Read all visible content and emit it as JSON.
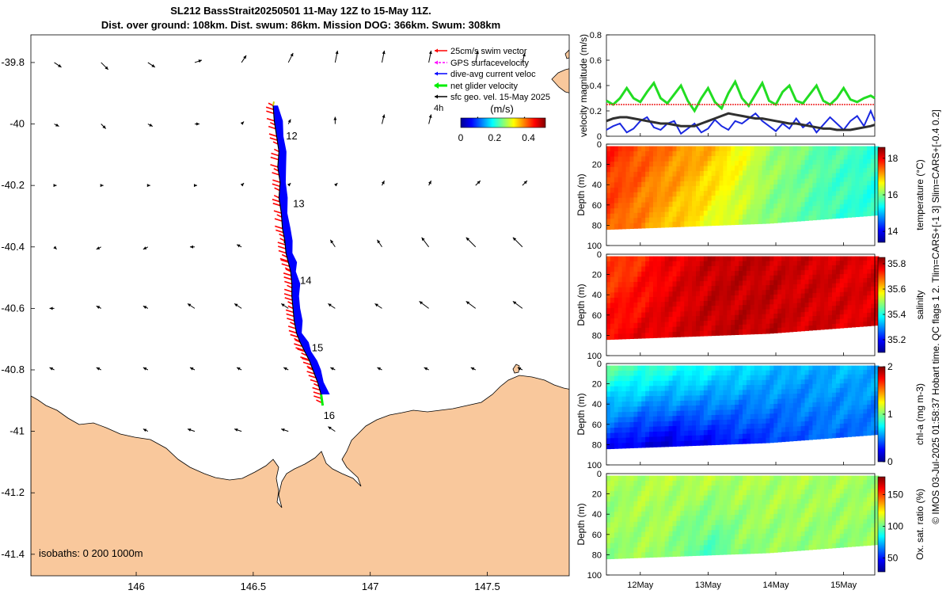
{
  "title": {
    "line1": "SL212 BassStrait20250501 11-May 12Z to 15-May 11Z.",
    "line2": "Dist. over ground: 108km. Dist. swum: 86km. Mission DOG: 366km. Swum: 308km"
  },
  "colors": {
    "land": "#f9c89c",
    "swim": "#ff0000",
    "gps": "#ff00ff",
    "current": "#0000ff",
    "net": "#00ee00",
    "geo": "#000000",
    "velocity_green": "#22dd22",
    "velocity_blue": "#1a28e0",
    "velocity_red": "#ee2222",
    "velocity_black": "#303030"
  },
  "side_caption": "© IMOS 03-Jul-2025 01:58:37 Hobart time. QC flags 1  2. Tlim=CARS+[-1 3] Slim=CARS+[-0.4 0.2]",
  "chart_data": [
    {
      "type": "map",
      "id": "track_map",
      "x_ticks": [
        146,
        146.5,
        147,
        147.5
      ],
      "x_tick_labels": [
        "146",
        "146.5",
        "147",
        "147.5"
      ],
      "y_ticks": [
        -39.8,
        -40,
        -40.2,
        -40.4,
        -40.6,
        -40.8,
        -41,
        -41.2,
        -41.4
      ],
      "y_tick_labels": [
        "-39.8",
        "-40",
        "-40.2",
        "-40.4",
        "-40.6",
        "-40.8",
        "-41",
        "-41.2",
        "-41.4"
      ],
      "xlim": [
        145.55,
        147.85
      ],
      "ylim": [
        -41.47,
        -39.71
      ],
      "day_labels": [
        {
          "text": "12",
          "lon": 146.64,
          "lat": -40.05
        },
        {
          "text": "13",
          "lon": 146.67,
          "lat": -40.27
        },
        {
          "text": "14",
          "lon": 146.7,
          "lat": -40.52
        },
        {
          "text": "15",
          "lon": 146.75,
          "lat": -40.74
        },
        {
          "text": "16",
          "lon": 146.8,
          "lat": -40.96
        }
      ],
      "track": {
        "lon": [
          146.585,
          146.59,
          146.6,
          146.61,
          146.605,
          146.615,
          146.61,
          146.62,
          146.625,
          146.635,
          146.64,
          146.65,
          146.66,
          146.665,
          146.665,
          146.67,
          146.675,
          146.685,
          146.7,
          146.72,
          146.74,
          146.755,
          146.775,
          146.79
        ],
        "lat": [
          -39.94,
          -39.99,
          -40.04,
          -40.09,
          -40.14,
          -40.19,
          -40.24,
          -40.29,
          -40.34,
          -40.38,
          -40.42,
          -40.45,
          -40.48,
          -40.52,
          -40.56,
          -40.6,
          -40.64,
          -40.68,
          -40.71,
          -40.74,
          -40.77,
          -40.8,
          -40.84,
          -40.88
        ]
      },
      "legend": [
        {
          "label": "25cm/s swim vector",
          "color_key": "swim"
        },
        {
          "label": "GPS surfacevelocity",
          "color_key": "gps"
        },
        {
          "label": "dive-avg current veloc",
          "color_key": "current"
        },
        {
          "label": "net glider velocity",
          "color_key": "net"
        },
        {
          "label": "sfc geo. vel. 15-May 2025",
          "color_key": "geo"
        }
      ],
      "legend_scale_label": "4h",
      "colorbar": {
        "label": "(m/s)",
        "ticks": [
          0,
          0.2,
          0.4
        ],
        "tick_labels": [
          "0",
          "0.2",
          "0.4"
        ],
        "range": [
          0,
          0.5
        ]
      },
      "isobaths_label": "isobaths: 0   200  1000m",
      "geo_vectors": {
        "lons": [
          145.65,
          145.85,
          146.05,
          146.25,
          146.45,
          146.65,
          146.85,
          147.05,
          147.25,
          147.45,
          147.65
        ],
        "lats": [
          -39.8,
          -40.0,
          -40.2,
          -40.4,
          -40.6,
          -40.8,
          -41.0
        ],
        "u": [
          [
            0.15,
            0.15,
            0.15,
            0.15,
            0.1,
            0.1,
            0.05,
            0.05,
            0.05,
            0.05,
            0.05
          ],
          [
            0.1,
            0.1,
            0.1,
            0.1,
            0.05,
            0.05,
            0.0,
            0.05,
            0.05,
            0.05,
            0.05
          ],
          [
            0.05,
            0.05,
            0.05,
            0.05,
            0.05,
            0.05,
            0.05,
            0.05,
            0.05,
            0.1,
            0.1
          ],
          [
            0.05,
            -0.1,
            -0.1,
            -0.1,
            -0.1,
            -0.1,
            -0.1,
            -0.1,
            -0.15,
            -0.2,
            -0.2
          ],
          [
            -0.1,
            -0.1,
            -0.1,
            -0.15,
            -0.15,
            -0.15,
            -0.15,
            -0.15,
            -0.2,
            -0.2,
            -0.2
          ],
          [
            -0.1,
            -0.1,
            -0.1,
            -0.1,
            -0.1,
            -0.1,
            -0.1,
            -0.1,
            -0.1,
            -0.1,
            -0.1
          ],
          [
            -0.05,
            -0.1,
            -0.1,
            -0.15,
            -0.15,
            -0.15,
            -0.15,
            -0.15,
            -0.1,
            -0.1,
            -0.1
          ]
        ],
        "v": [
          [
            -0.1,
            -0.15,
            -0.1,
            0.05,
            0.15,
            0.2,
            0.25,
            0.25,
            0.25,
            0.25,
            0.2
          ],
          [
            -0.05,
            -0.1,
            -0.05,
            0.0,
            0.05,
            0.1,
            0.15,
            0.2,
            0.2,
            0.15,
            0.15
          ],
          [
            0.0,
            0.0,
            0.0,
            0.0,
            0.05,
            0.05,
            0.05,
            0.1,
            0.1,
            0.1,
            0.1
          ],
          [
            -0.05,
            -0.05,
            -0.05,
            0.0,
            0.05,
            0.15,
            0.15,
            0.15,
            0.2,
            0.2,
            0.2
          ],
          [
            0.0,
            0.05,
            0.05,
            0.1,
            0.1,
            0.1,
            0.1,
            0.1,
            0.15,
            0.15,
            0.15
          ],
          [
            0.05,
            0.05,
            0.05,
            0.05,
            0.05,
            0.05,
            0.05,
            0.05,
            0.05,
            0.05,
            0.05
          ],
          [
            0.05,
            0.05,
            0.05,
            0.05,
            0.05,
            0.05,
            0.1,
            0.1,
            0.1,
            0.1,
            0.1
          ]
        ]
      }
    },
    {
      "type": "line",
      "id": "velocity_timeseries",
      "ylabel": "velocity magnitude (m/s)",
      "ylim": [
        0,
        0.8
      ],
      "y_ticks": [
        0,
        0.2,
        0.4,
        0.6,
        0.8
      ],
      "y_tick_labels": [
        "0",
        "0.2",
        "0.4",
        "0.6",
        "0.8"
      ],
      "xlim": [
        11.5,
        15.46
      ],
      "x": [
        11.5,
        11.6,
        11.7,
        11.8,
        11.9,
        12.0,
        12.1,
        12.2,
        12.3,
        12.4,
        12.5,
        12.6,
        12.7,
        12.8,
        12.9,
        13.0,
        13.1,
        13.2,
        13.3,
        13.4,
        13.5,
        13.6,
        13.7,
        13.8,
        13.9,
        14.0,
        14.1,
        14.2,
        14.3,
        14.4,
        14.5,
        14.6,
        14.7,
        14.8,
        14.9,
        15.0,
        15.1,
        15.2,
        15.3,
        15.4,
        15.46
      ],
      "series": [
        {
          "name": "net glider velocity",
          "color_key": "velocity_green",
          "values": [
            0.28,
            0.25,
            0.3,
            0.38,
            0.3,
            0.27,
            0.35,
            0.42,
            0.3,
            0.26,
            0.33,
            0.4,
            0.28,
            0.2,
            0.3,
            0.38,
            0.27,
            0.22,
            0.34,
            0.43,
            0.3,
            0.24,
            0.33,
            0.42,
            0.28,
            0.25,
            0.35,
            0.4,
            0.28,
            0.26,
            0.33,
            0.4,
            0.28,
            0.25,
            0.3,
            0.38,
            0.29,
            0.27,
            0.3,
            0.32,
            0.3
          ]
        },
        {
          "name": "25cm/s swim vector",
          "color_key": "velocity_red",
          "values": [
            0.25,
            0.25,
            0.25,
            0.25,
            0.25,
            0.25,
            0.25,
            0.25,
            0.25,
            0.25,
            0.25,
            0.25,
            0.25,
            0.25,
            0.25,
            0.25,
            0.25,
            0.25,
            0.25,
            0.25,
            0.25,
            0.25,
            0.25,
            0.25,
            0.25,
            0.25,
            0.25,
            0.25,
            0.25,
            0.25,
            0.25,
            0.25,
            0.25,
            0.25,
            0.25,
            0.25,
            0.25,
            0.25,
            0.25,
            0.25,
            0.25
          ]
        },
        {
          "name": "dive-avg current veloc",
          "color_key": "velocity_blue",
          "values": [
            0.05,
            0.08,
            0.1,
            0.03,
            0.06,
            0.12,
            0.15,
            0.07,
            0.05,
            0.1,
            0.12,
            0.02,
            0.06,
            0.1,
            0.03,
            0.06,
            0.13,
            0.08,
            0.05,
            0.12,
            0.1,
            0.14,
            0.18,
            0.12,
            0.08,
            0.04,
            0.1,
            0.06,
            0.14,
            0.07,
            0.11,
            0.03,
            0.09,
            0.15,
            0.1,
            0.05,
            0.12,
            0.16,
            0.08,
            0.2,
            0.12
          ]
        },
        {
          "name": "sfc geo. vel.",
          "color_key": "velocity_black",
          "values": [
            0.12,
            0.14,
            0.15,
            0.15,
            0.14,
            0.13,
            0.12,
            0.11,
            0.1,
            0.1,
            0.09,
            0.08,
            0.08,
            0.08,
            0.1,
            0.12,
            0.14,
            0.16,
            0.18,
            0.17,
            0.16,
            0.15,
            0.14,
            0.14,
            0.13,
            0.12,
            0.11,
            0.1,
            0.1,
            0.09,
            0.08,
            0.07,
            0.06,
            0.06,
            0.05,
            0.05,
            0.05,
            0.06,
            0.07,
            0.08,
            0.09
          ]
        }
      ]
    },
    {
      "type": "heatmap",
      "id": "temperature_section",
      "ylabel": "Depth (m)",
      "cbar_label": "temperature (°C)",
      "ylim": [
        100,
        0
      ],
      "y_ticks": [
        0,
        20,
        40,
        60,
        80,
        100
      ],
      "y_tick_labels": [
        "0",
        "20",
        "40",
        "60",
        "80",
        "100"
      ],
      "cbar_range": [
        13.4,
        18.6
      ],
      "cbar_ticks": [
        14,
        16,
        18
      ],
      "cbar_tick_labels": [
        "14",
        "16",
        "18"
      ],
      "colormap": "jet",
      "times": [
        11.5,
        11.9,
        12.3,
        12.7,
        13.1,
        13.5,
        13.9,
        14.3,
        14.7,
        15.1,
        15.46
      ],
      "bottom_depth": [
        84,
        83,
        82,
        81,
        80,
        79,
        78,
        76,
        74,
        72,
        70
      ],
      "surface_values": [
        17.8,
        17.6,
        17.4,
        17.2,
        17.0,
        16.6,
        16.2,
        16.0,
        15.8,
        15.7,
        15.6
      ],
      "bottom_values": [
        17.5,
        17.3,
        17.0,
        16.8,
        16.5,
        16.3,
        16.0,
        15.9,
        15.7,
        15.6,
        15.5
      ]
    },
    {
      "type": "heatmap",
      "id": "salinity_section",
      "ylabel": "Depth (m)",
      "cbar_label": "salinity",
      "ylim": [
        100,
        0
      ],
      "y_ticks": [
        0,
        20,
        40,
        60,
        80,
        100
      ],
      "y_tick_labels": [
        "0",
        "20",
        "40",
        "60",
        "80",
        "100"
      ],
      "cbar_range": [
        35.1,
        35.85
      ],
      "cbar_ticks": [
        35.2,
        35.4,
        35.6,
        35.8
      ],
      "cbar_tick_labels": [
        "35.2",
        "35.4",
        "35.6",
        "35.8"
      ],
      "colormap": "jet",
      "times": [
        11.5,
        11.9,
        12.3,
        12.7,
        13.1,
        13.5,
        13.9,
        14.3,
        14.7,
        15.1,
        15.46
      ],
      "bottom_depth": [
        84,
        83,
        82,
        81,
        80,
        79,
        78,
        76,
        74,
        72,
        70
      ],
      "surface_values": [
        35.7,
        35.72,
        35.76,
        35.78,
        35.8,
        35.8,
        35.8,
        35.79,
        35.79,
        35.78,
        35.78
      ],
      "bottom_values": [
        35.76,
        35.77,
        35.78,
        35.79,
        35.8,
        35.8,
        35.8,
        35.79,
        35.79,
        35.78,
        35.78
      ]
    },
    {
      "type": "heatmap",
      "id": "chla_section",
      "ylabel": "Depth (m)",
      "cbar_label": "chl-a (mg m-3)",
      "ylim": [
        100,
        0
      ],
      "y_ticks": [
        0,
        20,
        40,
        60,
        80,
        100
      ],
      "y_tick_labels": [
        "0",
        "20",
        "40",
        "60",
        "80",
        "100"
      ],
      "cbar_range": [
        0,
        2
      ],
      "cbar_ticks": [
        0,
        1,
        2
      ],
      "cbar_tick_labels": [
        "0",
        "1",
        "2"
      ],
      "colormap": "jet",
      "times": [
        11.5,
        11.9,
        12.3,
        12.7,
        13.1,
        13.5,
        13.9,
        14.3,
        14.7,
        15.1,
        15.46
      ],
      "bottom_depth": [
        84,
        83,
        82,
        81,
        80,
        79,
        78,
        76,
        74,
        72,
        70
      ],
      "surface_values": [
        0.95,
        0.9,
        0.85,
        0.8,
        0.75,
        0.7,
        0.65,
        0.6,
        0.6,
        0.62,
        0.6
      ],
      "bottom_values": [
        0.25,
        0.2,
        0.15,
        0.2,
        0.25,
        0.3,
        0.35,
        0.4,
        0.45,
        0.45,
        0.45
      ]
    },
    {
      "type": "heatmap",
      "id": "oxygen_section",
      "ylabel": "Depth (m)",
      "cbar_label": "Ox. sat. ratio (%)",
      "ylim": [
        100,
        0
      ],
      "y_ticks": [
        0,
        20,
        40,
        60,
        80,
        100
      ],
      "y_tick_labels": [
        "0",
        "20",
        "40",
        "60",
        "80",
        "100"
      ],
      "cbar_range": [
        28,
        178
      ],
      "cbar_ticks": [
        50,
        100,
        150
      ],
      "cbar_tick_labels": [
        "50",
        "100",
        "150"
      ],
      "colormap": "jet",
      "times": [
        11.5,
        11.9,
        12.3,
        12.7,
        13.1,
        13.5,
        13.9,
        14.3,
        14.7,
        15.1,
        15.46
      ],
      "bottom_depth": [
        84,
        83,
        82,
        81,
        80,
        79,
        78,
        76,
        74,
        72,
        70
      ],
      "surface_values": [
        108,
        110,
        111,
        112,
        111,
        110,
        110,
        110,
        109,
        109,
        108
      ],
      "bottom_values": [
        106,
        107,
        108,
        98,
        95,
        104,
        106,
        106,
        106,
        106,
        106
      ]
    }
  ],
  "time_axis": {
    "ticks": [
      12,
      13,
      14,
      15
    ],
    "tick_labels": [
      "12May",
      "13May",
      "14May",
      "15May"
    ]
  }
}
